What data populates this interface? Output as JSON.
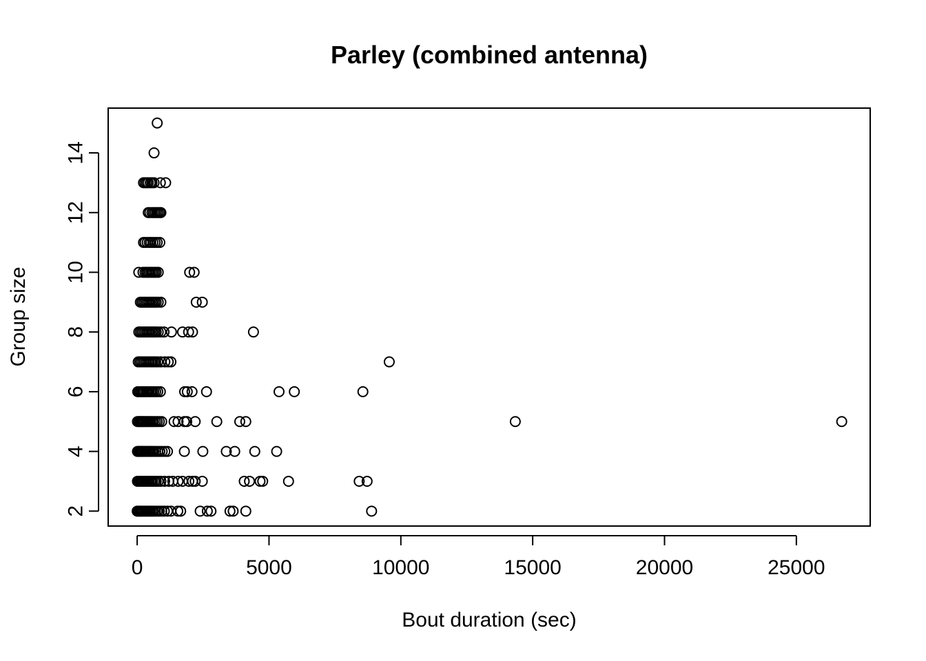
{
  "chart_data": {
    "type": "scatter",
    "title": "Parley (combined antenna)",
    "xlabel": "Bout duration (sec)",
    "ylabel": "Group size",
    "xlim": [
      -1100,
      27800
    ],
    "ylim": [
      1.5,
      15.5
    ],
    "xticks": [
      0,
      5000,
      10000,
      15000,
      20000,
      25000
    ],
    "yticks": [
      2,
      4,
      6,
      8,
      10,
      12,
      14
    ],
    "grid": false,
    "legend": "none",
    "series": [
      {
        "points": [
          [
            760,
            15
          ],
          [
            640,
            14
          ],
          [
            240,
            13
          ],
          [
            300,
            13
          ],
          [
            360,
            13
          ],
          [
            420,
            13
          ],
          [
            500,
            13
          ],
          [
            560,
            13
          ],
          [
            640,
            13
          ],
          [
            880,
            13
          ],
          [
            1080,
            13
          ],
          [
            420,
            12
          ],
          [
            480,
            12
          ],
          [
            560,
            12
          ],
          [
            620,
            12
          ],
          [
            680,
            12
          ],
          [
            740,
            12
          ],
          [
            800,
            12
          ],
          [
            860,
            12
          ],
          [
            900,
            12
          ],
          [
            240,
            11
          ],
          [
            300,
            11
          ],
          [
            380,
            11
          ],
          [
            460,
            11
          ],
          [
            520,
            11
          ],
          [
            600,
            11
          ],
          [
            680,
            11
          ],
          [
            760,
            11
          ],
          [
            860,
            11
          ],
          [
            60,
            10
          ],
          [
            220,
            10
          ],
          [
            300,
            10
          ],
          [
            360,
            10
          ],
          [
            420,
            10
          ],
          [
            480,
            10
          ],
          [
            540,
            10
          ],
          [
            600,
            10
          ],
          [
            660,
            10
          ],
          [
            720,
            10
          ],
          [
            800,
            10
          ],
          [
            1990,
            10
          ],
          [
            2160,
            10
          ],
          [
            120,
            9
          ],
          [
            180,
            9
          ],
          [
            240,
            9
          ],
          [
            300,
            9
          ],
          [
            360,
            9
          ],
          [
            420,
            9
          ],
          [
            480,
            9
          ],
          [
            540,
            9
          ],
          [
            600,
            9
          ],
          [
            660,
            9
          ],
          [
            720,
            9
          ],
          [
            800,
            9
          ],
          [
            900,
            9
          ],
          [
            2240,
            9
          ],
          [
            2470,
            9
          ],
          [
            60,
            8
          ],
          [
            120,
            8
          ],
          [
            180,
            8
          ],
          [
            240,
            8
          ],
          [
            300,
            8
          ],
          [
            360,
            8
          ],
          [
            420,
            8
          ],
          [
            480,
            8
          ],
          [
            540,
            8
          ],
          [
            600,
            8
          ],
          [
            660,
            8
          ],
          [
            720,
            8
          ],
          [
            800,
            8
          ],
          [
            900,
            8
          ],
          [
            1020,
            8
          ],
          [
            1300,
            8
          ],
          [
            1720,
            8
          ],
          [
            1950,
            8
          ],
          [
            2100,
            8
          ],
          [
            4410,
            8
          ],
          [
            40,
            7
          ],
          [
            100,
            7
          ],
          [
            160,
            7
          ],
          [
            220,
            7
          ],
          [
            280,
            7
          ],
          [
            340,
            7
          ],
          [
            400,
            7
          ],
          [
            460,
            7
          ],
          [
            520,
            7
          ],
          [
            580,
            7
          ],
          [
            640,
            7
          ],
          [
            700,
            7
          ],
          [
            780,
            7
          ],
          [
            900,
            7
          ],
          [
            1050,
            7
          ],
          [
            1180,
            7
          ],
          [
            1280,
            7
          ],
          [
            9560,
            7
          ],
          [
            20,
            6
          ],
          [
            70,
            6
          ],
          [
            120,
            6
          ],
          [
            170,
            6
          ],
          [
            220,
            6
          ],
          [
            270,
            6
          ],
          [
            330,
            6
          ],
          [
            390,
            6
          ],
          [
            450,
            6
          ],
          [
            510,
            6
          ],
          [
            570,
            6
          ],
          [
            630,
            6
          ],
          [
            700,
            6
          ],
          [
            780,
            6
          ],
          [
            880,
            6
          ],
          [
            1800,
            6
          ],
          [
            1900,
            6
          ],
          [
            2080,
            6
          ],
          [
            2630,
            6
          ],
          [
            5380,
            6
          ],
          [
            5960,
            6
          ],
          [
            8560,
            6
          ],
          [
            10,
            5
          ],
          [
            50,
            5
          ],
          [
            90,
            5
          ],
          [
            130,
            5
          ],
          [
            170,
            5
          ],
          [
            210,
            5
          ],
          [
            250,
            5
          ],
          [
            300,
            5
          ],
          [
            350,
            5
          ],
          [
            400,
            5
          ],
          [
            450,
            5
          ],
          [
            500,
            5
          ],
          [
            560,
            5
          ],
          [
            620,
            5
          ],
          [
            690,
            5
          ],
          [
            760,
            5
          ],
          [
            840,
            5
          ],
          [
            930,
            5
          ],
          [
            1400,
            5
          ],
          [
            1550,
            5
          ],
          [
            1790,
            5
          ],
          [
            1880,
            5
          ],
          [
            2200,
            5
          ],
          [
            3020,
            5
          ],
          [
            3890,
            5
          ],
          [
            4120,
            5
          ],
          [
            14340,
            5
          ],
          [
            26720,
            5
          ],
          [
            10,
            4
          ],
          [
            50,
            4
          ],
          [
            90,
            4
          ],
          [
            130,
            4
          ],
          [
            170,
            4
          ],
          [
            210,
            4
          ],
          [
            260,
            4
          ],
          [
            310,
            4
          ],
          [
            360,
            4
          ],
          [
            410,
            4
          ],
          [
            460,
            4
          ],
          [
            510,
            4
          ],
          [
            570,
            4
          ],
          [
            630,
            4
          ],
          [
            700,
            4
          ],
          [
            780,
            4
          ],
          [
            860,
            4
          ],
          [
            950,
            4
          ],
          [
            1050,
            4
          ],
          [
            1150,
            4
          ],
          [
            1790,
            4
          ],
          [
            2490,
            4
          ],
          [
            3380,
            4
          ],
          [
            3700,
            4
          ],
          [
            4460,
            4
          ],
          [
            5290,
            4
          ],
          [
            10,
            3
          ],
          [
            50,
            3
          ],
          [
            90,
            3
          ],
          [
            130,
            3
          ],
          [
            170,
            3
          ],
          [
            210,
            3
          ],
          [
            260,
            3
          ],
          [
            310,
            3
          ],
          [
            360,
            3
          ],
          [
            410,
            3
          ],
          [
            460,
            3
          ],
          [
            520,
            3
          ],
          [
            580,
            3
          ],
          [
            650,
            3
          ],
          [
            720,
            3
          ],
          [
            800,
            3
          ],
          [
            900,
            3
          ],
          [
            1040,
            3
          ],
          [
            1200,
            3
          ],
          [
            1350,
            3
          ],
          [
            1550,
            3
          ],
          [
            1720,
            3
          ],
          [
            1960,
            3
          ],
          [
            2100,
            3
          ],
          [
            2200,
            3
          ],
          [
            2470,
            3
          ],
          [
            4060,
            3
          ],
          [
            4260,
            3
          ],
          [
            4660,
            3
          ],
          [
            4760,
            3
          ],
          [
            5740,
            3
          ],
          [
            8420,
            3
          ],
          [
            8720,
            3
          ],
          [
            0,
            2
          ],
          [
            40,
            2
          ],
          [
            80,
            2
          ],
          [
            120,
            2
          ],
          [
            160,
            2
          ],
          [
            200,
            2
          ],
          [
            250,
            2
          ],
          [
            300,
            2
          ],
          [
            350,
            2
          ],
          [
            400,
            2
          ],
          [
            450,
            2
          ],
          [
            500,
            2
          ],
          [
            560,
            2
          ],
          [
            620,
            2
          ],
          [
            690,
            2
          ],
          [
            760,
            2
          ],
          [
            840,
            2
          ],
          [
            930,
            2
          ],
          [
            1030,
            2
          ],
          [
            1150,
            2
          ],
          [
            1280,
            2
          ],
          [
            1540,
            2
          ],
          [
            1650,
            2
          ],
          [
            2390,
            2
          ],
          [
            2660,
            2
          ],
          [
            2800,
            2
          ],
          [
            3520,
            2
          ],
          [
            3640,
            2
          ],
          [
            4120,
            2
          ],
          [
            8890,
            2
          ]
        ]
      }
    ]
  }
}
